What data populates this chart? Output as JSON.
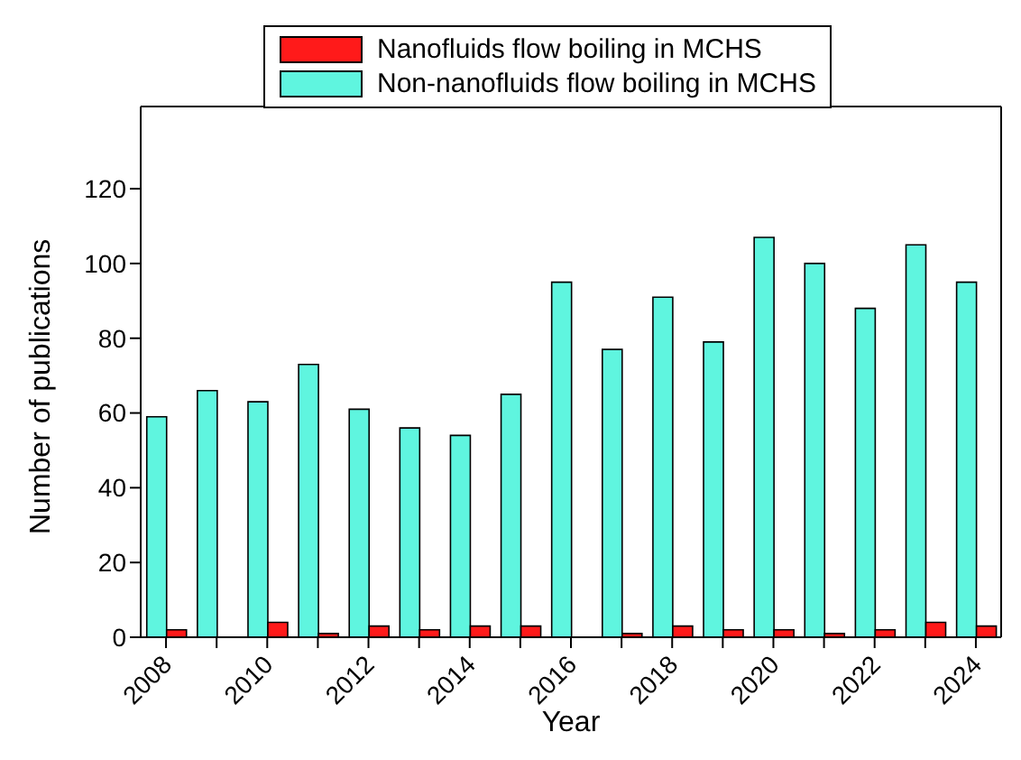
{
  "chart_data": {
    "type": "bar",
    "xlabel": "Year",
    "ylabel": "Number of publications",
    "categories": [
      "2008",
      null,
      "2010",
      null,
      "2012",
      null,
      "2014",
      null,
      "2016",
      null,
      "2018",
      null,
      "2020",
      null,
      "2022",
      null,
      "2024"
    ],
    "series": [
      {
        "name": "Non-nanofluids flow boiling in MCHS",
        "color": "#5ff5df",
        "values": [
          59,
          66,
          63,
          73,
          61,
          56,
          54,
          65,
          95,
          77,
          91,
          79,
          107,
          100,
          88,
          105,
          95
        ]
      },
      {
        "name": "Nanofluids flow boiling in MCHS",
        "color": "#ff1a1a",
        "values": [
          2,
          0,
          4,
          1,
          3,
          2,
          3,
          3,
          0,
          1,
          3,
          2,
          2,
          1,
          2,
          4,
          3
        ]
      }
    ],
    "ylim": [
      0,
      142
    ],
    "yticks": [
      0,
      20,
      40,
      60,
      80,
      100,
      120
    ],
    "grid": false,
    "legend": "top"
  }
}
